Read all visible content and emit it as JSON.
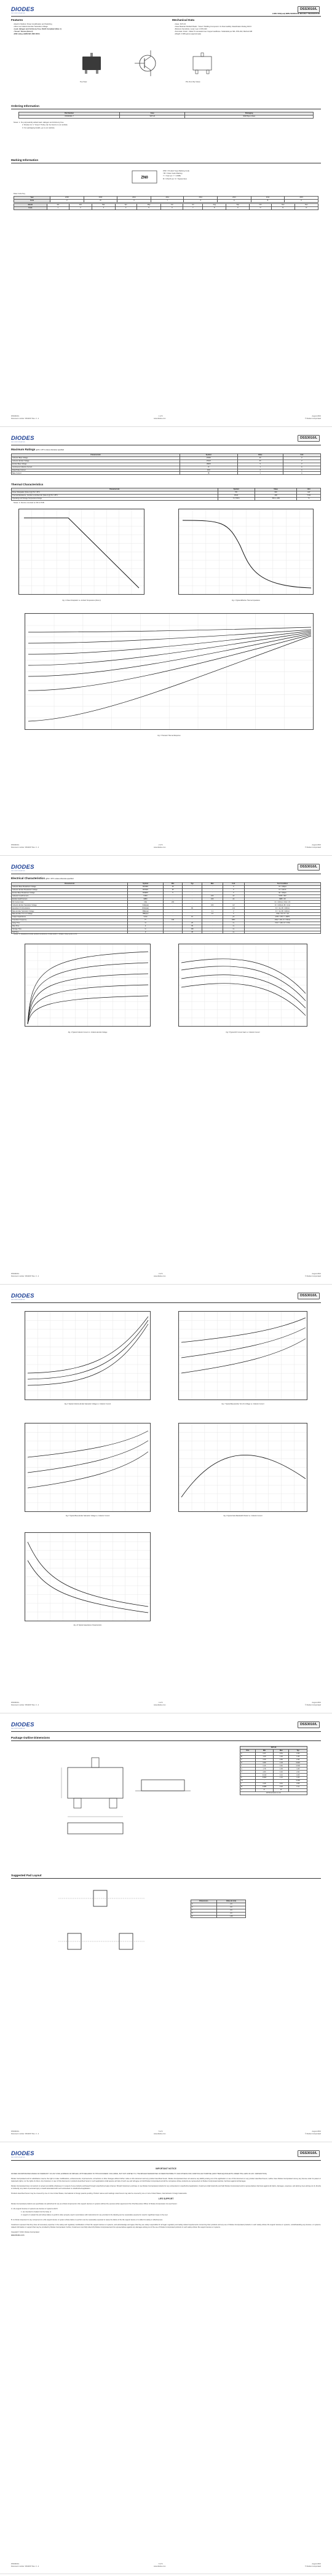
{
  "brand": {
    "name": "DIODES",
    "sub": "INCORPORATED",
    "color": "#1c3f94"
  },
  "part": {
    "number": "DSS3010/L",
    "description": "LOW VCE(sat) NPN SURFACE MOUNT TRANSISTOR"
  },
  "features": {
    "title": "Features",
    "items": [
      "Ideal for Medium Power Amplification and Switching",
      "Ultra Low Collector-Emitter Saturation Voltage",
      "Lead, Halogen and Antimony Free, RoHS Compliant (Note 1)",
      "\"Green\" Device (Note 2)",
      "ESD rating: (HBM 8kV, MM 400V)"
    ]
  },
  "mechanical": {
    "title": "Mechanical Data",
    "items": [
      "Case: SOT-23",
      "Case Material: Molded Plastic. \"Green\" Molding Compound. UL Flammability Classification Rating 94V-0",
      "Moisture Sensitivity: Level 1 per J-STD-020",
      "Terminals: Finish - Matte Tin annealed over Copper leadframe. Solderable per MIL-STD-202, Method 208",
      "Weight: 0.008 grams (approximate)"
    ]
  },
  "pkg_labels": {
    "top": "Top View",
    "pin": "Pin-Out (Top View)",
    "schem": "Equivalent Circuit"
  },
  "ordering": {
    "title": "Ordering Information",
    "note_ref": "(Note 3)",
    "headers": [
      "Part Number",
      "Case",
      "Packaging"
    ],
    "rows": [
      [
        "DSS3010L-7",
        "SOT-23",
        "3000/Tape & Reel"
      ]
    ],
    "notes": [
      "Notes:   1. No purposefully added lead. Halogen and Antimony free.",
      "2. Diodes Inc.'s \"Green\" Policy can be found on our website.",
      "3. For packaging details, go to our website."
    ]
  },
  "marking": {
    "title": "Marking Information",
    "code": "ZN0",
    "legend": [
      "ZN0 = Product Type Marking Code",
      "YM = Date Code Marking",
      "Y = Year (ex: Y = 2008)",
      "M = Month (ex: 9 = September)"
    ],
    "datecode_label": "Date Code Key",
    "years": [
      "Year",
      "2008",
      "2009",
      "2010",
      "2011",
      "2012",
      "2013",
      "2014",
      "2015"
    ],
    "year_codes": [
      "Code",
      "V",
      "W",
      "X",
      "Y",
      "Z",
      "A",
      "B",
      "C"
    ],
    "months": [
      "Month",
      "Jan",
      "Feb",
      "Mar",
      "Apr",
      "May",
      "Jun",
      "Jul",
      "Aug",
      "Sep",
      "Oct",
      "Nov",
      "Dec"
    ],
    "month_codes": [
      "Code",
      "1",
      "2",
      "3",
      "4",
      "5",
      "6",
      "7",
      "8",
      "9",
      "O",
      "N",
      "D"
    ]
  },
  "footer": {
    "left": "DSS3010/L",
    "left2": "Document number: DS31157 Rev. 3 - 2",
    "center": "1 of 6",
    "center2": "www.diodes.com",
    "right": "August 2010",
    "right2": "© Diodes Incorporated",
    "pages": [
      "1 of 6",
      "2 of 6",
      "3 of 6",
      "4 of 6",
      "5 of 6",
      "6 of 6"
    ]
  },
  "max_ratings": {
    "title": "Maximum Ratings",
    "cond": "@TA = 25°C unless otherwise specified",
    "headers": [
      "Characteristic",
      "Symbol",
      "Value",
      "Unit"
    ],
    "rows": [
      [
        "Collector-Base Voltage",
        "VCBO",
        "40",
        "V"
      ],
      [
        "Collector-Emitter Voltage",
        "VCEO",
        "30",
        "V"
      ],
      [
        "Emitter-Base Voltage",
        "VEBO",
        "5",
        "V"
      ],
      [
        "Continuous Collector Current",
        "IC",
        "1",
        "A"
      ],
      [
        "Peak Pulse Current",
        "ICM",
        "2",
        "A"
      ],
      [
        "Base Current",
        "IB",
        "1",
        "A"
      ]
    ]
  },
  "thermal": {
    "title": "Thermal Characteristics",
    "headers": [
      "Characteristic",
      "Symbol",
      "Value",
      "Unit"
    ],
    "rows": [
      [
        "Power Dissipation (Note 4) @ TA = 25°C",
        "PD",
        "600",
        "mW"
      ],
      [
        "Thermal Resistance, Junction to Ambient Air (Note 4) @ TA = 25°C",
        "RθJA",
        "208",
        "°C/W"
      ],
      [
        "Operating and Storage Temperature Range",
        "TJ, TSTG",
        "-55 to +150",
        "°C"
      ]
    ],
    "note": "Notes:   4. Device mounted on FR-4 PCB."
  },
  "page2_graphs": {
    "g1": {
      "caption": "Fig. 1 Power Dissipation vs. Ambient Temperature (Note 4)",
      "xlabel": "TA, AMBIENT TEMPERATURE (°C)",
      "ylabel": "PD, POWER DISSIPATION (W)"
    },
    "g2": {
      "caption": "Fig. 2 Typical Effective Thermal Impedance",
      "xlabel": "t1, PULSE DURATION TIME (s)",
      "ylabel": "r(t), TRANSIENT THERMAL RESISTANCE"
    },
    "g3": {
      "caption": "Fig. 3 Transient Thermal Response",
      "xlabel": "t1, PULSE DURATION TIME (s)",
      "ylabel": "r(t), TRANSIENT THERMAL RESISTANCE"
    }
  },
  "elec": {
    "title": "Electrical Characteristics",
    "cond": "@TA = 25°C unless otherwise specified",
    "headers": [
      "Characteristic",
      "Symbol",
      "Min",
      "Typ",
      "Max",
      "Unit",
      "Test Condition"
    ],
    "rows": [
      [
        "Collector-Base Breakdown Voltage",
        "BVCBO",
        "40",
        "-",
        "-",
        "V",
        "IC = 100μA"
      ],
      [
        "Collector-Emitter Breakdown Voltage",
        "BVCEO",
        "30",
        "-",
        "-",
        "V",
        "IC = 10mA"
      ],
      [
        "Emitter-Base Breakdown Voltage",
        "BVEBO",
        "5",
        "-",
        "-",
        "V",
        "IE = 100μA"
      ],
      [
        "Collector Cutoff Current",
        "ICBO",
        "-",
        "-",
        "100",
        "nA",
        "VCB = 30V"
      ],
      [
        "Emitter Cutoff Current",
        "IEBO",
        "-",
        "-",
        "100",
        "nA",
        "VEB = 4V"
      ],
      [
        "DC Current Gain",
        "hFE",
        "200",
        "-",
        "-",
        "",
        "IC = 100mA, VCE = 2V"
      ],
      [
        "Collector-Emitter Saturation Voltage",
        "VCE(sat)",
        "-",
        "-",
        "100",
        "mV",
        "IC = 100mA, IB = 1mA"
      ],
      [
        "Equivalent On-Resistance",
        "RCE(sat)",
        "-",
        "80",
        "-",
        "mΩ",
        "IC = 1A, IB = 100mA"
      ],
      [
        "Base-Emitter Saturation Voltage",
        "VBE(sat)",
        "-",
        "-",
        "1.1",
        "V",
        "IC = 1A, IB = 100mA"
      ],
      [
        "Base-Emitter Turn-on Voltage",
        "VBE(on)",
        "-",
        "-",
        "1.0",
        "V",
        "VCE = 2V, IC = 1A"
      ],
      [
        "Output Capacitance",
        "Cobo",
        "-",
        "10",
        "-",
        "pF",
        "VCB = 10V, f = 1MHz"
      ],
      [
        "Transition Frequency",
        "fT",
        "100",
        "-",
        "-",
        "MHz",
        "VCE = 10V, IC = 50mA"
      ],
      [
        "Delay Time",
        "td",
        "-",
        "26",
        "-",
        "ns",
        "VCC = 10V, IC = 0.5A"
      ],
      [
        "Rise Time",
        "tr",
        "-",
        "35",
        "-",
        "ns",
        ""
      ],
      [
        "Storage Time",
        "ts",
        "-",
        "160",
        "-",
        "ns",
        ""
      ],
      [
        "Fall Time",
        "tf",
        "-",
        "45",
        "-",
        "ns",
        ""
      ]
    ],
    "note": "Notes:   5. Measured under pulsed conditions. Pulse width = 300μs. Duty cycle ≤ 2%."
  },
  "p3_graphs": {
    "g4": {
      "caption": "Fig. 4 Typical Collector Current vs. Collector-Emitter Voltage",
      "xlabel": "VCE, COLLECTOR-EMITTER VOLTAGE (V)"
    },
    "g5": {
      "caption": "Fig. 5 Typical DC Current Gain vs. Collector Current",
      "xlabel": "IC, COLLECTOR CURRENT (A)"
    }
  },
  "p4_graphs": {
    "g6": {
      "caption": "Fig. 6 Typical Collector-Emitter Saturation Voltage vs. Collector Current"
    },
    "g7": {
      "caption": "Fig. 7 Typical Base-Emitter Turn-On Voltage vs. Collector Current"
    },
    "g8": {
      "caption": "Fig. 8 Typical Base-Emitter Saturation Voltage vs. Collector Current"
    },
    "g9": {
      "caption": "Fig. 9 Typical Gain-Bandwidth Product vs. Collector Current"
    },
    "g10": {
      "caption": "Fig. 10 Typical Capacitance Characteristics"
    }
  },
  "outline": {
    "title": "Package Outline Dimensions",
    "table_title": "SOT-23",
    "headers": [
      "Dim",
      "Min",
      "Max",
      "Typ"
    ],
    "rows": [
      [
        "A",
        "0.37",
        "0.51",
        "0.40"
      ],
      [
        "B",
        "1.20",
        "1.40",
        "1.30"
      ],
      [
        "C",
        "2.30",
        "2.50",
        "2.40"
      ],
      [
        "D",
        "0.89",
        "1.03",
        "0.915"
      ],
      [
        "F",
        "0.45",
        "0.60",
        "0.535"
      ],
      [
        "G",
        "1.78",
        "2.05",
        "1.83"
      ],
      [
        "H",
        "2.80",
        "3.00",
        "2.90"
      ],
      [
        "J",
        "0.013",
        "0.10",
        "0.05"
      ],
      [
        "K",
        "0.903",
        "1.10",
        "1.00"
      ],
      [
        "K1",
        "-",
        "-",
        "0.400"
      ],
      [
        "L",
        "0.45",
        "0.61",
        "0.55"
      ],
      [
        "M",
        "0.085",
        "0.18",
        "0.11"
      ],
      [
        "α",
        "0°",
        "8°",
        "-"
      ]
    ],
    "table_footer": "All Dimensions in mm"
  },
  "pad": {
    "title": "Suggested Pad Layout",
    "headers": [
      "Dimensions",
      "Value (in mm)"
    ],
    "rows": [
      [
        "Z",
        "2.9"
      ],
      [
        "X",
        "0.8"
      ],
      [
        "Y",
        "0.9"
      ],
      [
        "C",
        "2.0"
      ],
      [
        "E",
        "1.35"
      ]
    ]
  },
  "notice": {
    "title": "IMPORTANT NOTICE",
    "p1": "DIODES INCORPORATED MAKES NO WARRANTY OF ANY KIND, EXPRESS OR IMPLIED, WITH REGARDS TO THIS DOCUMENT, INCLUDING, BUT NOT LIMITED TO, THE IMPLIED WARRANTIES OF MERCHANTABILITY AND FITNESS FOR A PARTICULAR PURPOSE (AND THEIR EQUIVALENTS UNDER THE LAWS OF ANY JURISDICTION).",
    "p2": "Diodes Incorporated and its subsidiaries reserve the right to make modifications, enhancements, improvements, corrections or other changes without further notice to this document and any product described herein. Diodes Incorporated does not assume any liability arising out of the application or use of this document or any product described herein; neither does Diodes Incorporated convey any license under its patent or trademark rights, nor the rights of others. Any Customer or user of this document or products described herein in such applications shall assume all risks of such use and will agree to hold Diodes Incorporated and all the companies whose products are represented on Diodes Incorporated website, harmless against all damages.",
    "p3": "Diodes Incorporated does not warrant or accept any liability whatsoever in respect of any products purchased through unauthorized sales channel. Should Customers purchase or use Diodes Incorporated products for any unintended or unauthorized application, Customers shall indemnify and hold Diodes Incorporated and its representatives harmless against all claims, damages, expenses, and attorney fees arising out of, directly or indirectly, any claim of personal injury or death associated with such unintended or unauthorized application.",
    "p4": "Products described herein may be covered by one or more United States, international or foreign patents pending. Product names and markings noted herein may also be covered by one or more United States, international or foreign trademarks.",
    "life_title": "LIFE SUPPORT",
    "p5": "Diodes Incorporated products are specifically not authorized for use as critical components in life support devices or systems without the express written approval of the Chief Executive Officer of Diodes Incorporated. As used herein:",
    "a": "A.  Life support devices or systems are devices or systems which:",
    "a1": "1. are intended to implant into the body, or",
    "a2": "2. support or sustain life and whose failure to perform when properly used in accordance with instructions for use provided in the labeling can be reasonably expected to result in significant injury to the user.",
    "b": "B.  A critical component is any component in a life support device or system whose failure to perform can be reasonably expected to cause the failure of the life support device or to affect its safety or effectiveness.",
    "p6": "Customers represent that they have all necessary expertise in the safety and regulatory ramifications of their life support devices or systems, and acknowledge and agree that they are solely responsible for all legal, regulatory and safety-related requirements concerning their products and any use of Diodes Incorporated products in such safety-critical, life support devices or systems, notwithstanding any devices- or systems-related information or support that may be provided by Diodes Incorporated. Further, Customers must fully indemnify Diodes Incorporated and its representatives against any damages arising out of the use of Diodes Incorporated products in such safety-critical, life support devices or systems.",
    "copyright": "Copyright © 2010, Diodes Incorporated",
    "url": "www.diodes.com"
  }
}
